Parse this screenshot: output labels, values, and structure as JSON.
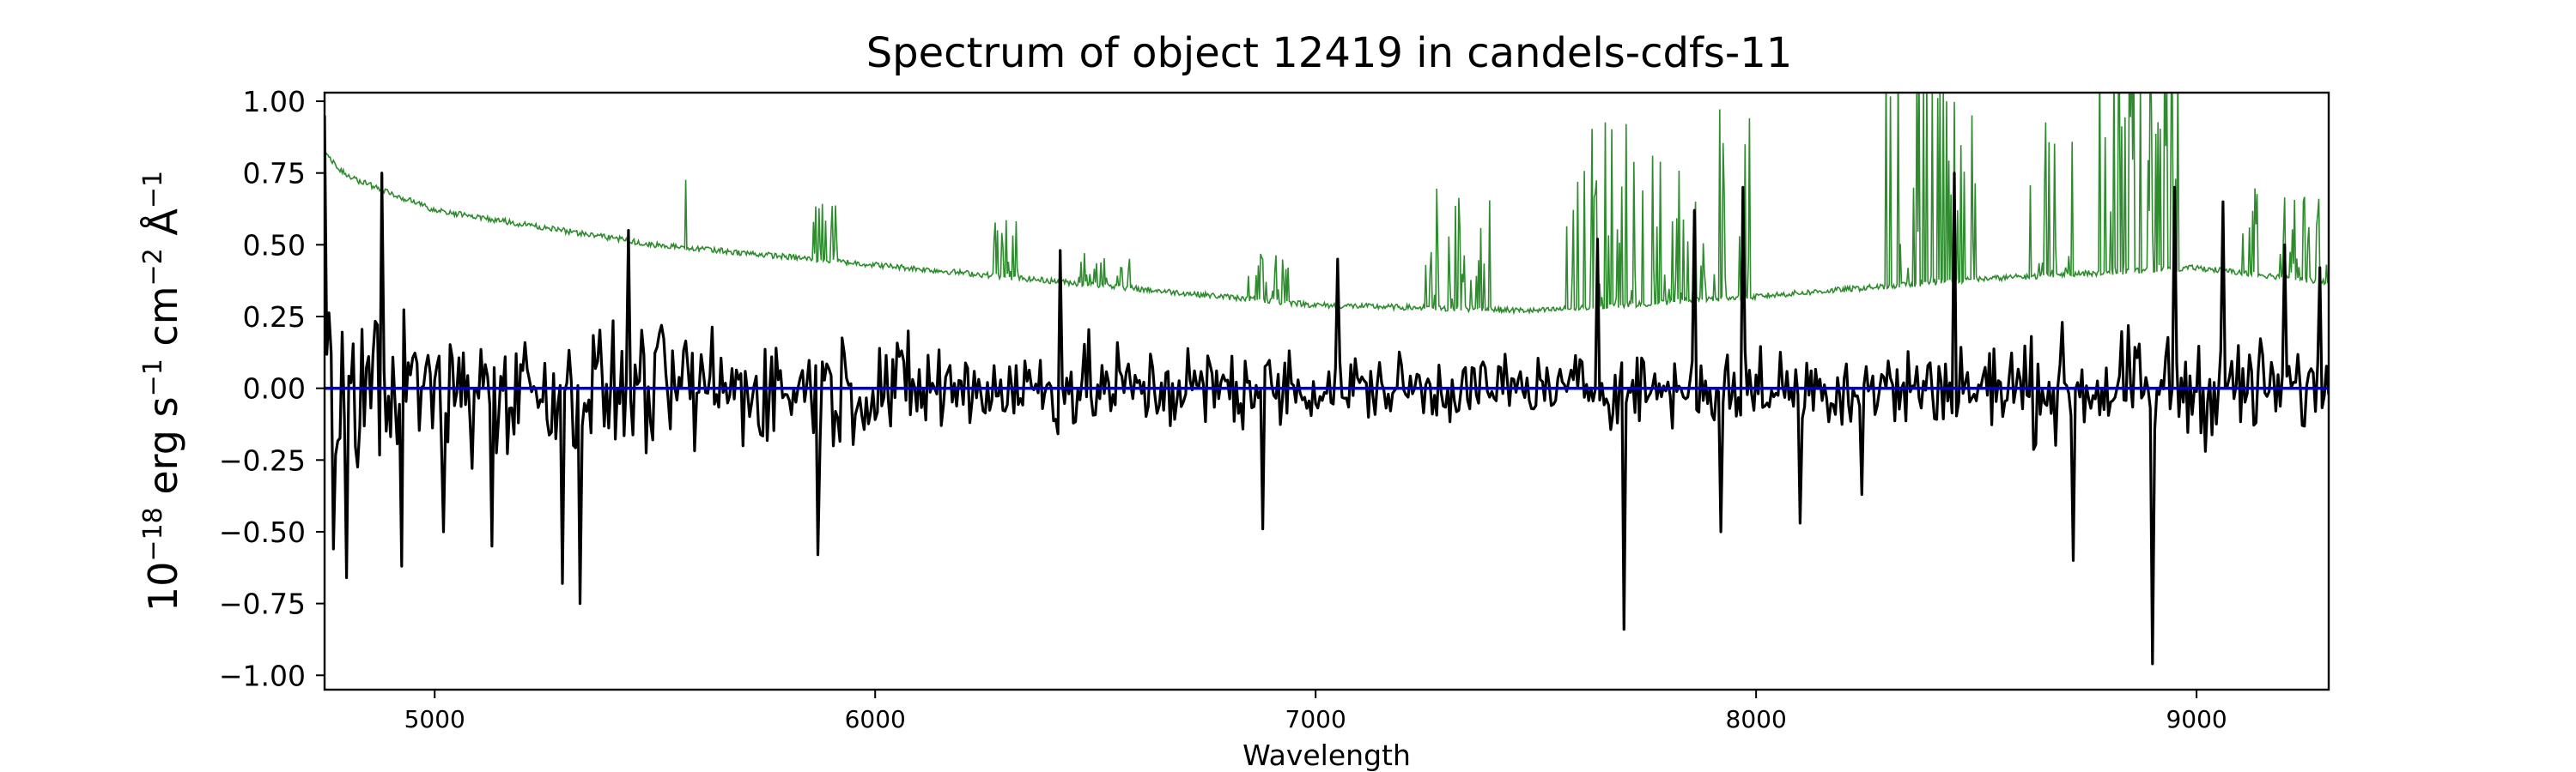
{
  "chart_data": {
    "type": "line",
    "title": "Spectrum of object 12419 in candels-cdfs-11",
    "xlabel": "Wavelength",
    "ylabel": {
      "base": "10",
      "exp1": "−18",
      "unit_erg": " erg s",
      "exp2": "−1",
      "unit_cm": " cm",
      "exp3": "−2",
      "unit_a": " Å",
      "exp4": "−1"
    },
    "xlim": [
      4750,
      9300
    ],
    "ylim": [
      -1.05,
      1.03
    ],
    "xticks": [
      5000,
      6000,
      7000,
      8000,
      9000
    ],
    "xtick_labels": [
      "5000",
      "6000",
      "7000",
      "8000",
      "9000"
    ],
    "yticks": [
      1.0,
      0.75,
      0.5,
      0.25,
      0.0,
      -0.25,
      -0.5,
      -0.75,
      -1.0
    ],
    "ytick_labels": [
      "1.00",
      "0.75",
      "0.50",
      "0.25",
      "0.00",
      "−0.25",
      "−0.50",
      "−0.75",
      "−1.00"
    ],
    "grid": false,
    "series": [
      {
        "role": "flux",
        "color": "#000000",
        "x_start": 4750,
        "x_step": 5,
        "spikes": [
          [
            4752,
            0.95
          ],
          [
            4770,
            -0.56
          ],
          [
            4800,
            -0.66
          ],
          [
            4880,
            0.75
          ],
          [
            4925,
            -0.62
          ],
          [
            5020,
            -0.5
          ],
          [
            5130,
            -0.55
          ],
          [
            5290,
            -0.68
          ],
          [
            5330,
            -0.75
          ],
          [
            5440,
            0.55
          ],
          [
            5870,
            -0.58
          ],
          [
            6420,
            0.48
          ],
          [
            6880,
            -0.49
          ],
          [
            7050,
            0.45
          ],
          [
            7640,
            0.52
          ],
          [
            7700,
            -0.84
          ],
          [
            7860,
            0.62
          ],
          [
            7920,
            -0.5
          ],
          [
            7970,
            0.7
          ],
          [
            8100,
            -0.47
          ],
          [
            8240,
            -0.37
          ],
          [
            8450,
            0.75
          ],
          [
            8720,
            -0.6
          ],
          [
            8900,
            -0.96
          ],
          [
            8950,
            0.7
          ],
          [
            9060,
            0.65
          ],
          [
            9200,
            0.5
          ],
          [
            9280,
            0.42
          ]
        ]
      },
      {
        "role": "model",
        "color": "#0000cc",
        "x": [
          4750,
          9300
        ],
        "y": [
          0.0,
          0.0
        ]
      },
      {
        "role": "error",
        "color": "#2e8b2e",
        "continuum_x": [
          4750,
          4800,
          5000,
          5500,
          6000,
          6500,
          7000,
          7500,
          8000,
          8500,
          9000,
          9300
        ],
        "continuum_y": [
          0.82,
          0.74,
          0.62,
          0.5,
          0.43,
          0.36,
          0.29,
          0.27,
          0.32,
          0.38,
          0.42,
          0.37
        ],
        "line_regions": [
          [
            5570,
            5585,
            0.6
          ],
          [
            5860,
            5920,
            0.2
          ],
          [
            6270,
            6330,
            0.2
          ],
          [
            6460,
            6590,
            0.12
          ],
          [
            6830,
            6950,
            0.2
          ],
          [
            7240,
            7400,
            0.45
          ],
          [
            7570,
            8000,
            0.7
          ],
          [
            8280,
            8500,
            0.8
          ],
          [
            8620,
            8720,
            0.55
          ],
          [
            8760,
            8960,
            0.9
          ],
          [
            9100,
            9300,
            0.3
          ]
        ]
      }
    ]
  }
}
